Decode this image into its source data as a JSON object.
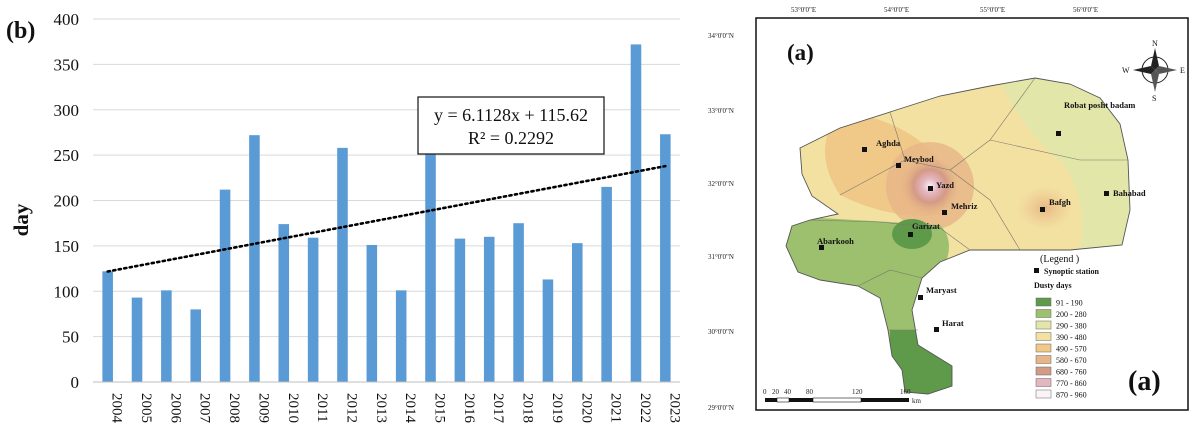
{
  "panel_b": {
    "label": "(b)",
    "trend_equation": "y = 6.1128x + 115.62",
    "trend_r2": "R² = 0.2292",
    "trend": {
      "slope": 6.1128,
      "intercept": 115.62
    }
  },
  "chart_data": {
    "type": "bar",
    "categories": [
      "2004",
      "2005",
      "2006",
      "2007",
      "2008",
      "2009",
      "2010",
      "2011",
      "2012",
      "2013",
      "2014",
      "2015",
      "2016",
      "2017",
      "2018",
      "2019",
      "2020",
      "2021",
      "2022",
      "2023"
    ],
    "values": [
      122,
      93,
      101,
      80,
      212,
      272,
      174,
      159,
      258,
      151,
      101,
      255,
      158,
      160,
      175,
      113,
      153,
      215,
      372,
      273
    ],
    "ylabel": "day",
    "xlabel": "",
    "ylim": [
      0,
      400
    ],
    "yticks": [
      0,
      50,
      100,
      150,
      200,
      250,
      300,
      350,
      400
    ],
    "grid": true,
    "bar_color": "#5b9bd5",
    "trendline": "dotted linear"
  },
  "panel_a": {
    "label_top": "(a)",
    "label_bottom": "(a)",
    "lon_labels": [
      "53°0'0\"E",
      "54°0'0\"E",
      "55°0'0\"E",
      "56°0'0\"E"
    ],
    "lat_labels": [
      "34°0'0\"N",
      "33°0'0\"N",
      "32°0'0\"N",
      "31°0'0\"N",
      "30°0'0\"N",
      "29°0'0\"N"
    ],
    "stations": [
      "Robat posht badam",
      "Aghda",
      "Meybod",
      "Yazd",
      "Bahabad",
      "Bafgh",
      "Mehriz",
      "Garizat",
      "Abarkooh",
      "Maryast",
      "Harat"
    ],
    "legend_title": "(Legend )",
    "legend_station": "Synoptic station",
    "legend_subtitle": "Dusty days",
    "legend_items": [
      {
        "range": "91 - 190",
        "color": "#5f9a4a"
      },
      {
        "range": "200 - 280",
        "color": "#9dc06e"
      },
      {
        "range": "290 - 380",
        "color": "#e2e6a9"
      },
      {
        "range": "390 - 480",
        "color": "#f3e1a2"
      },
      {
        "range": "490 - 570",
        "color": "#f0c888"
      },
      {
        "range": "580 - 670",
        "color": "#e7b587"
      },
      {
        "range": "680 - 760",
        "color": "#d39a86"
      },
      {
        "range": "770 - 860",
        "color": "#e4b6c0"
      },
      {
        "range": "870 - 960",
        "color": "#fbf3f6"
      }
    ],
    "scale_labels": [
      "0",
      "20",
      "40",
      "80",
      "120",
      "160"
    ],
    "scale_unit": "km",
    "compass": [
      "N",
      "E",
      "S",
      "W"
    ]
  }
}
